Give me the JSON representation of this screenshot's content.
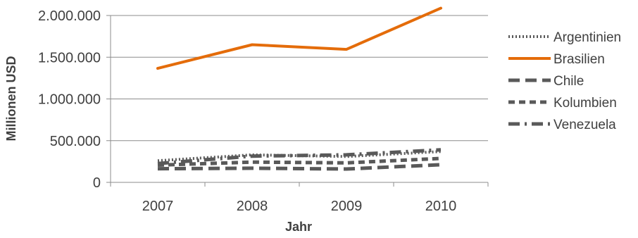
{
  "chart_data": {
    "type": "line",
    "title": "",
    "xlabel": "Jahr",
    "ylabel": "Millionen USD",
    "categories": [
      "2007",
      "2008",
      "2009",
      "2010"
    ],
    "ylim": [
      0,
      2000000
    ],
    "yticks": [
      {
        "value": 0,
        "label": "0"
      },
      {
        "value": 500000,
        "label": "500.000"
      },
      {
        "value": 1000000,
        "label": "1.000.000"
      },
      {
        "value": 1500000,
        "label": "1.500.000"
      },
      {
        "value": 2000000,
        "label": "2.000.000"
      }
    ],
    "grid": true,
    "legend_position": "right",
    "series": [
      {
        "name": "Argentinien",
        "values": [
          260000,
          330000,
          310000,
          370000
        ],
        "color": "#595959",
        "style": "dotted"
      },
      {
        "name": "Brasilien",
        "values": [
          1366000,
          1650000,
          1594000,
          2088000
        ],
        "color": "#e46c0a",
        "style": "solid"
      },
      {
        "name": "Chile",
        "values": [
          164000,
          170000,
          160000,
          212000
        ],
        "color": "#595959",
        "style": "longdash"
      },
      {
        "name": "Kolumbien",
        "values": [
          207000,
          243000,
          234000,
          287000
        ],
        "color": "#595959",
        "style": "dash"
      },
      {
        "name": "Venezuela",
        "values": [
          226000,
          315000,
          330000,
          390000
        ],
        "color": "#595959",
        "style": "dashdot"
      }
    ]
  }
}
